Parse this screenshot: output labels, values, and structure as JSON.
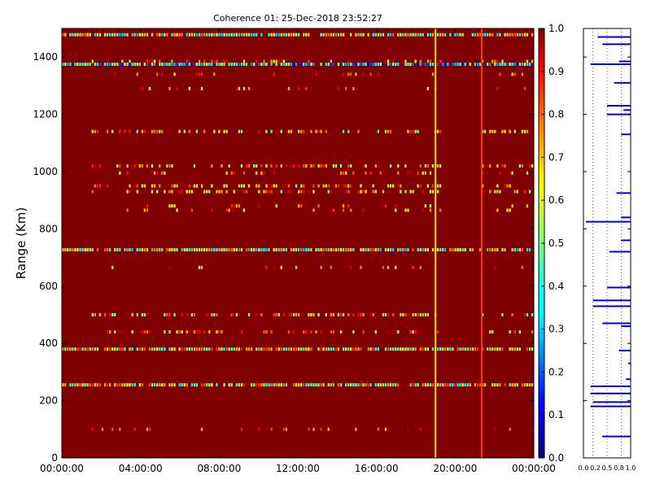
{
  "chart_data": [
    {
      "type": "heatmap",
      "title": "Coherence 01: 25-Dec-2018 23:52:27",
      "ylabel": "Range (Km)",
      "xlabel": "",
      "x_ticks": [
        "00:00:00",
        "04:00:00",
        "08:00:00",
        "12:00:00",
        "16:00:00",
        "20:00:00",
        "00:00:00"
      ],
      "xlim_hours": [
        0,
        24
      ],
      "y_ticks": [
        0,
        200,
        400,
        600,
        800,
        1000,
        1200,
        1400
      ],
      "ylim": [
        0,
        1500
      ],
      "colorbar": {
        "colormap": "jet",
        "range": [
          0.0,
          1.0
        ],
        "ticks": [
          "0.0",
          "0.1",
          "0.2",
          "0.3",
          "0.4",
          "0.5",
          "0.6",
          "0.7",
          "0.8",
          "0.9",
          "1.0"
        ]
      },
      "background_value": 1.0,
      "vertical_lines": [
        {
          "time_hours": 19.0,
          "value": 0.65
        },
        {
          "time_hours": 21.35,
          "value": 0.82
        }
      ],
      "horizontal_bands": [
        {
          "range_km": 1478,
          "value": 0.55,
          "density": "high"
        },
        {
          "range_km": 1385,
          "value": 0.85,
          "density": "medium"
        },
        {
          "range_km": 1375,
          "value": 0.35,
          "density": "high"
        },
        {
          "range_km": 1340,
          "value": 0.85,
          "density": "low"
        },
        {
          "range_km": 1290,
          "value": 0.85,
          "density": "low"
        },
        {
          "range_km": 1140,
          "value": 0.65,
          "density": "medium"
        },
        {
          "range_km": 1020,
          "value": 0.75,
          "density": "medium"
        },
        {
          "range_km": 995,
          "value": 0.8,
          "density": "low"
        },
        {
          "range_km": 950,
          "value": 0.75,
          "density": "medium"
        },
        {
          "range_km": 930,
          "value": 0.7,
          "density": "medium"
        },
        {
          "range_km": 880,
          "value": 0.85,
          "density": "low"
        },
        {
          "range_km": 865,
          "value": 0.8,
          "density": "low"
        },
        {
          "range_km": 727,
          "value": 0.55,
          "density": "high"
        },
        {
          "range_km": 665,
          "value": 0.85,
          "density": "low"
        },
        {
          "range_km": 500,
          "value": 0.7,
          "density": "medium"
        },
        {
          "range_km": 440,
          "value": 0.8,
          "density": "medium"
        },
        {
          "range_km": 380,
          "value": 0.6,
          "density": "high"
        },
        {
          "range_km": 255,
          "value": 0.6,
          "density": "high"
        },
        {
          "range_km": 100,
          "value": 0.85,
          "density": "low"
        }
      ]
    },
    {
      "type": "bar",
      "orientation": "horizontal",
      "x_ticks": [
        "0.0",
        "0.2",
        "0.5",
        "0.8",
        "1.0"
      ],
      "xlim": [
        0,
        1
      ],
      "ylim": [
        0,
        1500
      ],
      "gridlines_x": [
        0.2,
        0.5,
        0.8
      ],
      "bar_color": "#0000cc",
      "bars": [
        {
          "range_km": 1470,
          "from": 0.3,
          "to": 1.0
        },
        {
          "range_km": 1445,
          "from": 0.4,
          "to": 1.0
        },
        {
          "range_km": 1385,
          "from": 0.75,
          "to": 1.0
        },
        {
          "range_km": 1375,
          "from": 0.15,
          "to": 1.0
        },
        {
          "range_km": 1310,
          "from": 0.65,
          "to": 1.0
        },
        {
          "range_km": 1230,
          "from": 0.5,
          "to": 1.0
        },
        {
          "range_km": 1215,
          "from": 0.85,
          "to": 1.0
        },
        {
          "range_km": 1200,
          "from": 0.5,
          "to": 1.0
        },
        {
          "range_km": 1130,
          "from": 0.8,
          "to": 1.0
        },
        {
          "range_km": 925,
          "from": 0.7,
          "to": 1.0
        },
        {
          "range_km": 840,
          "from": 0.8,
          "to": 1.0
        },
        {
          "range_km": 825,
          "from": 0.05,
          "to": 1.0
        },
        {
          "range_km": 760,
          "from": 0.8,
          "to": 1.0
        },
        {
          "range_km": 720,
          "from": 0.55,
          "to": 1.0
        },
        {
          "range_km": 595,
          "from": 0.5,
          "to": 1.0
        },
        {
          "range_km": 550,
          "from": 0.2,
          "to": 1.0
        },
        {
          "range_km": 530,
          "from": 0.2,
          "to": 1.0
        },
        {
          "range_km": 470,
          "from": 0.4,
          "to": 1.0
        },
        {
          "range_km": 460,
          "from": 0.8,
          "to": 1.0
        },
        {
          "range_km": 375,
          "from": 0.75,
          "to": 1.0
        },
        {
          "range_km": 330,
          "from": 0.95,
          "to": 1.0
        },
        {
          "range_km": 275,
          "from": 0.9,
          "to": 1.0
        },
        {
          "range_km": 250,
          "from": 0.15,
          "to": 1.0
        },
        {
          "range_km": 225,
          "from": 0.15,
          "to": 1.0
        },
        {
          "range_km": 195,
          "from": 0.2,
          "to": 1.0
        },
        {
          "range_km": 180,
          "from": 0.15,
          "to": 1.0
        },
        {
          "range_km": 75,
          "from": 0.4,
          "to": 1.0
        }
      ]
    }
  ]
}
